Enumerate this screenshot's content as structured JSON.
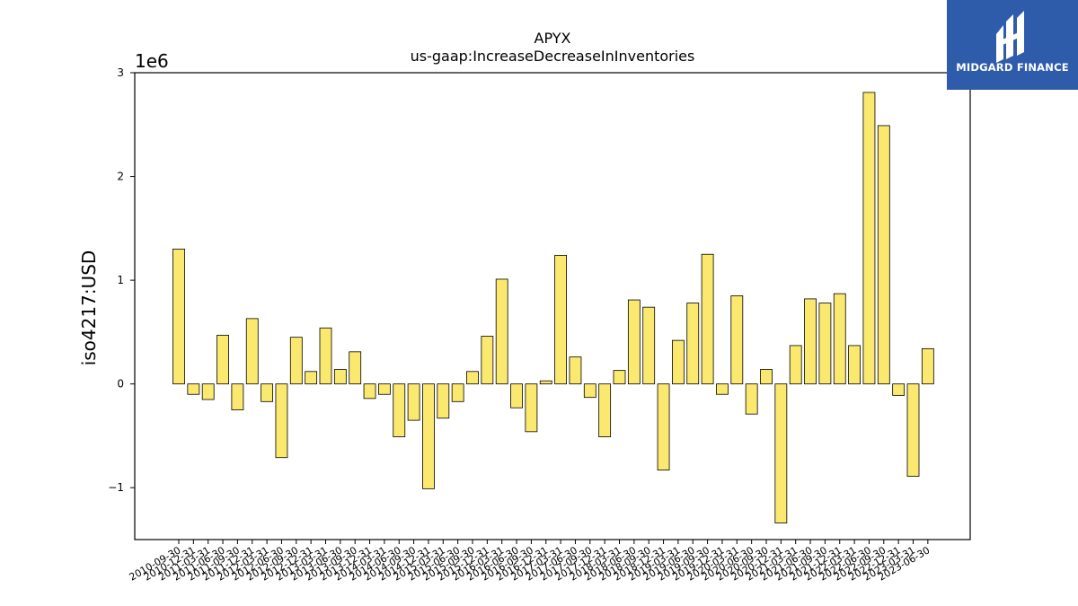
{
  "chart_data": {
    "type": "bar",
    "title": "APYX",
    "subtitle": "us-gaap:IncreaseDecreaseInInventories",
    "ylabel": "iso4217:USD",
    "xlabel": "",
    "y_multiplier_label": "1e6",
    "ylim": [
      -1500000,
      3000000
    ],
    "yticks": [
      -1000000,
      0,
      1000000,
      2000000,
      3000000
    ],
    "ytick_labels": [
      "−1",
      "0",
      "1",
      "2",
      "3"
    ],
    "bar_color": "#fbe96f",
    "bar_edge_color": "#000000",
    "grid": false,
    "categories": [
      "2010-09-30",
      "2010-12-31",
      "2011-03-31",
      "2011-06-30",
      "2011-09-30",
      "2011-12-31",
      "2012-03-31",
      "2012-06-30",
      "2012-09-30",
      "2012-12-31",
      "2013-03-31",
      "2013-06-30",
      "2013-09-30",
      "2013-12-31",
      "2014-03-31",
      "2014-06-30",
      "2014-09-30",
      "2014-12-31",
      "2015-03-31",
      "2015-06-30",
      "2015-09-30",
      "2015-12-31",
      "2016-03-31",
      "2016-06-30",
      "2016-09-30",
      "2016-12-31",
      "2017-03-31",
      "2017-06-30",
      "2017-09-30",
      "2017-12-31",
      "2018-03-31",
      "2018-06-30",
      "2018-09-30",
      "2018-12-31",
      "2019-03-31",
      "2019-06-30",
      "2019-09-30",
      "2019-12-31",
      "2020-03-31",
      "2020-06-30",
      "2020-09-30",
      "2020-12-31",
      "2021-03-31",
      "2021-06-30",
      "2021-09-30",
      "2021-12-31",
      "2022-03-31",
      "2022-06-30",
      "2022-09-30",
      "2022-12-31",
      "2023-03-31",
      "2023-06-30"
    ],
    "values": [
      1300000,
      -100000,
      -150000,
      470000,
      -250000,
      630000,
      -170000,
      -710000,
      450000,
      120000,
      540000,
      140000,
      310000,
      -140000,
      -100000,
      -510000,
      -350000,
      -1010000,
      -330000,
      -170000,
      120000,
      460000,
      1010000,
      -230000,
      -460000,
      30000,
      1240000,
      260000,
      -130000,
      -510000,
      130000,
      810000,
      740000,
      -830000,
      420000,
      780000,
      1250000,
      -100000,
      850000,
      -290000,
      140000,
      -1340000,
      370000,
      820000,
      780000,
      870000,
      370000,
      2810000,
      2490000,
      -110000,
      -890000,
      340000
    ]
  },
  "logo": {
    "text": "MIDGARD FINANCE",
    "background": "#2f5caa"
  }
}
